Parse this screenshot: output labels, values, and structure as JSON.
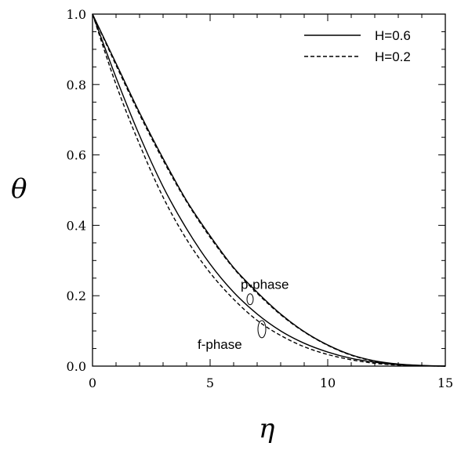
{
  "chart_data": {
    "type": "line",
    "xlabel": "η",
    "ylabel": "θ",
    "xlim": [
      0,
      15
    ],
    "ylim": [
      0,
      1
    ],
    "x_ticks": [
      "0",
      "5",
      "10",
      "15"
    ],
    "y_ticks": [
      "0.0",
      "0.2",
      "0.4",
      "0.6",
      "0.8",
      "1.0"
    ],
    "grid": false,
    "legend_position": "top-right",
    "legend": [
      {
        "label": "H=0.6",
        "style": "solid"
      },
      {
        "label": "H=0.2",
        "style": "dashed"
      }
    ],
    "annotations": [
      {
        "text": "p-phase",
        "near_x": 6.7,
        "near_y": 0.19
      },
      {
        "text": "f-phase",
        "near_x": 7.2,
        "near_y": 0.105
      }
    ],
    "x": [
      0,
      1,
      2,
      3,
      4,
      5,
      6,
      7,
      8,
      9,
      10,
      11,
      12,
      13,
      14,
      15
    ],
    "series": [
      {
        "phase": "p-phase",
        "legend": "H=0.6",
        "style": "solid",
        "values": [
          1.0,
          0.86,
          0.72,
          0.59,
          0.47,
          0.37,
          0.28,
          0.21,
          0.148,
          0.098,
          0.06,
          0.032,
          0.015,
          0.006,
          0.002,
          0.0
        ]
      },
      {
        "phase": "p-phase",
        "legend": "H=0.2",
        "style": "dashed",
        "values": [
          1.0,
          0.855,
          0.715,
          0.585,
          0.467,
          0.366,
          0.278,
          0.207,
          0.146,
          0.097,
          0.059,
          0.031,
          0.014,
          0.005,
          0.001,
          0.0
        ]
      },
      {
        "phase": "f-phase",
        "legend": "H=0.6",
        "style": "solid",
        "values": [
          1.0,
          0.82,
          0.655,
          0.51,
          0.39,
          0.29,
          0.21,
          0.148,
          0.1,
          0.065,
          0.04,
          0.022,
          0.011,
          0.004,
          0.001,
          0.0
        ]
      },
      {
        "phase": "f-phase",
        "legend": "H=0.2",
        "style": "dashed",
        "values": [
          1.0,
          0.8,
          0.63,
          0.48,
          0.36,
          0.265,
          0.19,
          0.13,
          0.087,
          0.055,
          0.033,
          0.018,
          0.008,
          0.003,
          0.001,
          0.0
        ]
      }
    ]
  }
}
